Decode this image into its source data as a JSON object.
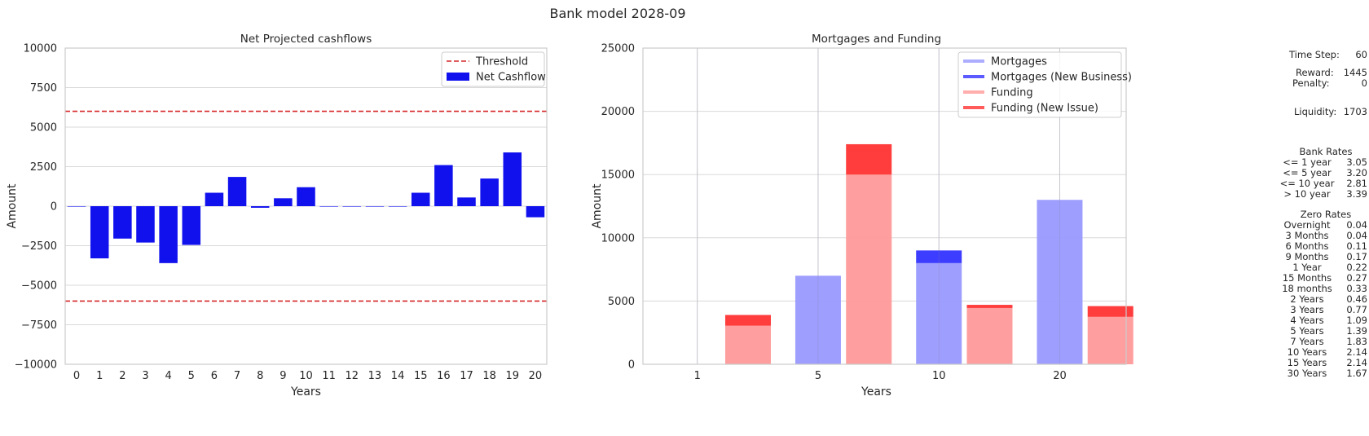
{
  "suptitle": "Bank model 2028-09",
  "chart_data": [
    {
      "type": "bar",
      "title": "Net Projected cashflows",
      "xlabel": "Years",
      "ylabel": "Amount",
      "ylim": [
        -10000,
        10000
      ],
      "yticks": [
        10000,
        7500,
        5000,
        2500,
        0,
        -2500,
        -5000,
        -7500,
        -10000
      ],
      "ytick_labels": [
        "10000",
        "7500",
        "5000",
        "2500",
        "0",
        "−2500",
        "−5000",
        "−7500",
        "−10000"
      ],
      "categories": [
        "0",
        "1",
        "2",
        "3",
        "4",
        "5",
        "6",
        "7",
        "8",
        "9",
        "10",
        "11",
        "12",
        "13",
        "14",
        "15",
        "16",
        "17",
        "18",
        "19",
        "20"
      ],
      "series": [
        {
          "name": "Net Cashflow",
          "color": "#1111ee",
          "values": [
            0,
            -3300,
            -2050,
            -2300,
            -3600,
            -2450,
            850,
            1850,
            -100,
            500,
            1200,
            0,
            0,
            0,
            0,
            850,
            2600,
            550,
            1750,
            3400,
            -700
          ]
        }
      ],
      "thresholds": [
        6000,
        -6000
      ],
      "threshold_label": "Threshold",
      "threshold_color": "#d62728",
      "legend": "top-right",
      "grid": "horizontal"
    },
    {
      "type": "bar",
      "title": "Mortgages and Funding",
      "xlabel": "Years",
      "ylabel": "Amount",
      "ylim": [
        0,
        25000
      ],
      "yticks": [
        25000,
        20000,
        15000,
        10000,
        5000,
        0
      ],
      "categories": [
        "1",
        "5",
        "10",
        "20"
      ],
      "series": [
        {
          "name": "Mortgages",
          "color": "#9999ff",
          "values": [
            0,
            7000,
            8000,
            13000
          ]
        },
        {
          "name": "Mortgages (New Business)",
          "color": "#3333ff",
          "values": [
            0,
            0,
            1000,
            0
          ]
        },
        {
          "name": "Funding",
          "color": "#ff9999",
          "values": [
            3050,
            15000,
            4450,
            3750
          ]
        },
        {
          "name": "Funding (New Issue)",
          "color": "#ff3333",
          "values": [
            850,
            2400,
            250,
            850
          ]
        }
      ],
      "legend": "top-right",
      "grid": "both"
    }
  ],
  "info": {
    "time_step_label": "Time Step:",
    "time_step": "60",
    "reward_label": "Reward:",
    "reward": "1445",
    "penalty_label": "Penalty:",
    "penalty": "0",
    "liquidity_label": "Liquidity:",
    "liquidity": "1703",
    "bank_rates_title": "Bank Rates",
    "bank_rates": [
      {
        "label": "<= 1 year",
        "value": "3.05"
      },
      {
        "label": "<= 5 year",
        "value": "3.20"
      },
      {
        "label": "<= 10 year",
        "value": "2.81"
      },
      {
        "label": "> 10 year",
        "value": "3.39"
      }
    ],
    "zero_rates_title": "Zero Rates",
    "zero_rates": [
      {
        "label": "Overnight",
        "value": "0.04"
      },
      {
        "label": "3 Months",
        "value": "0.04"
      },
      {
        "label": "6 Months",
        "value": "0.11"
      },
      {
        "label": "9 Months",
        "value": "0.17"
      },
      {
        "label": "1 Year",
        "value": "0.22"
      },
      {
        "label": "15 Months",
        "value": "0.27"
      },
      {
        "label": "18 months",
        "value": "0.33"
      },
      {
        "label": "2 Years",
        "value": "0.46"
      },
      {
        "label": "3 Years",
        "value": "0.77"
      },
      {
        "label": "4 Years",
        "value": "1.09"
      },
      {
        "label": "5 Years",
        "value": "1.39"
      },
      {
        "label": "7 Years",
        "value": "1.83"
      },
      {
        "label": "10 Years",
        "value": "2.14"
      },
      {
        "label": "15 Years",
        "value": "2.14"
      },
      {
        "label": "30 Years",
        "value": "1.67"
      }
    ]
  }
}
